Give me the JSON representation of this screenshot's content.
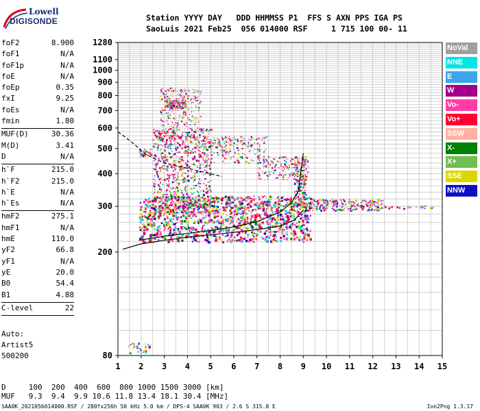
{
  "logo": {
    "top": "Lowell",
    "bottom": "DIGISONDE"
  },
  "header": {
    "line1": "Station YYYY DAY   DDD HHMMSS P1  FFS S AXN PPS IGA PS",
    "line2": "SaoLuis 2021 Feb25  056 014000 RSF     1 715 100 00- 11"
  },
  "params": [
    {
      "label": "foF2",
      "value": "8.900"
    },
    {
      "label": "foF1",
      "value": "N/A"
    },
    {
      "label": "foF1p",
      "value": "N/A"
    },
    {
      "label": "foE",
      "value": "N/A"
    },
    {
      "label": "foEp",
      "value": "0.35"
    },
    {
      "label": "fxI",
      "value": "9.25"
    },
    {
      "label": "foEs",
      "value": "N/A"
    },
    {
      "label": "fmin",
      "value": "1.80"
    },
    {
      "sep": true
    },
    {
      "label": "MUF(D)",
      "value": "30.36"
    },
    {
      "label": "M(D)",
      "value": "3.41"
    },
    {
      "label": "D",
      "value": "N/A"
    },
    {
      "sep": true
    },
    {
      "label": "h`F",
      "value": "215.0"
    },
    {
      "label": "h`F2",
      "value": "215.0"
    },
    {
      "label": "h`E",
      "value": "N/A"
    },
    {
      "label": "h`Es",
      "value": "N/A"
    },
    {
      "sep": true
    },
    {
      "label": "hmF2",
      "value": "275.1"
    },
    {
      "label": "hmF1",
      "value": "N/A"
    },
    {
      "label": "hmE",
      "value": "110.0"
    },
    {
      "label": "yF2",
      "value": "66.8"
    },
    {
      "label": "yF1",
      "value": "N/A"
    },
    {
      "label": "yE",
      "value": "20.0"
    },
    {
      "label": "B0",
      "value": "54.4"
    },
    {
      "label": "B1",
      "value": "4.88"
    },
    {
      "sep": true
    },
    {
      "label": "C-level",
      "value": "22"
    },
    {
      "sep": true
    }
  ],
  "auto": {
    "line1": "Auto:",
    "line2": "Artist5",
    "line3": "500200"
  },
  "legend": [
    {
      "label": "NoVal",
      "color": "#a0a0a0"
    },
    {
      "label": "NNE",
      "color": "#00e5e5"
    },
    {
      "label": "E",
      "color": "#3aa6f0"
    },
    {
      "label": "W",
      "color": "#a0008a"
    },
    {
      "label": "Vo-",
      "color": "#ff3ca8"
    },
    {
      "label": "Vo+",
      "color": "#ff0030"
    },
    {
      "label": "SSW",
      "color": "#ffb0a0"
    },
    {
      "label": "X-",
      "color": "#008000"
    },
    {
      "label": "X+",
      "color": "#70c050"
    },
    {
      "label": "SSE",
      "color": "#d8d800"
    },
    {
      "label": "NNW",
      "color": "#1010c0"
    }
  ],
  "bottom": {
    "dline": "D     100  200  400  600  800 1000 1500 3000 [km]",
    "mufline": "MUF   9.3  9.4  9.9 10.6 11.8 13.4 18.1 30.4 [MHz]"
  },
  "footer": {
    "left": "SAA0K_2021056014000.RSF / 280fx256h 50 kHz 5.0 km / DPS-4 SAA0K 903 / 2.6 S 315.8 E",
    "right": "Ion2Png 1.3.17"
  },
  "chart_data": {
    "type": "scatter",
    "x_ticks": [
      "1",
      "2",
      "3",
      "4",
      "5",
      "6",
      "7",
      "8",
      "9",
      "10",
      "11",
      "12",
      "13",
      "14",
      "15"
    ],
    "y_ticks": [
      "80",
      "200",
      "300",
      "400",
      "500",
      "600",
      "700",
      "800",
      "900",
      "1000",
      "1100",
      "1280"
    ],
    "xlim": [
      1,
      15
    ],
    "ylim": [
      80,
      1280
    ],
    "y_scale": "log",
    "grid": true,
    "series": [
      {
        "trace": "virtual-height",
        "points": [
          [
            1.2,
            205
          ],
          [
            2.0,
            215
          ],
          [
            3.0,
            222
          ],
          [
            4.0,
            228
          ],
          [
            5.0,
            233
          ],
          [
            6.0,
            238
          ],
          [
            7.0,
            244
          ],
          [
            8.0,
            252
          ],
          [
            8.6,
            265
          ],
          [
            9.0,
            290
          ]
        ]
      },
      {
        "trace": "real-height",
        "points": [
          [
            1.9,
            222
          ],
          [
            3.0,
            230
          ],
          [
            4.0,
            236
          ],
          [
            5.0,
            242
          ],
          [
            6.0,
            250
          ],
          [
            7.0,
            262
          ],
          [
            8.0,
            285
          ],
          [
            8.5,
            310
          ],
          [
            8.8,
            345
          ],
          [
            8.9,
            410
          ],
          [
            9.0,
            480
          ]
        ]
      },
      {
        "trace": "extrapolated",
        "points": [
          [
            1.0,
            580
          ],
          [
            1.3,
            555
          ],
          [
            1.7,
            520
          ],
          [
            2.2,
            475
          ],
          [
            3.0,
            440
          ],
          [
            4.0,
            420
          ],
          [
            5.0,
            400
          ],
          [
            5.5,
            390
          ]
        ]
      }
    ]
  }
}
